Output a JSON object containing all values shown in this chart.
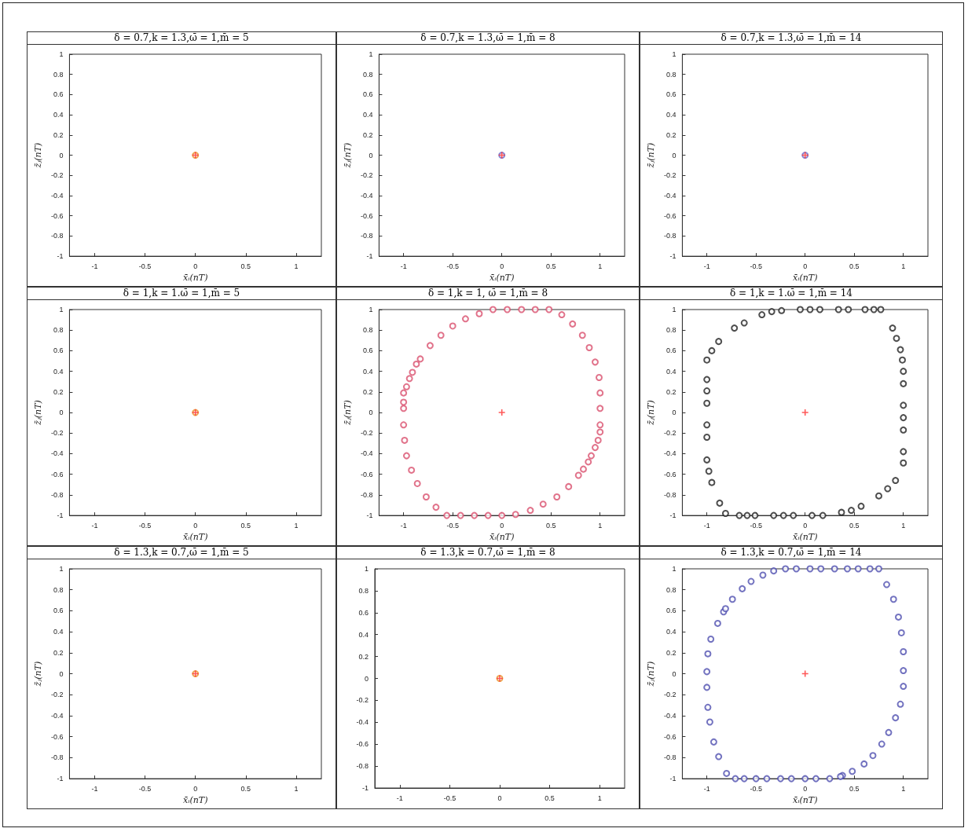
{
  "chart_data": [
    {
      "type": "scatter",
      "title": "δ = 0.7,k = 1.3,ω̄ = 1,m̄ = 5",
      "xlabel": "x̄ᵢ(nT)",
      "ylabel": "z̄ⱼ(nT)",
      "xlim": [
        -1.25,
        1.25
      ],
      "ylim": [
        -1,
        1
      ],
      "xticks": [
        -1,
        -0.5,
        0,
        0.5,
        1
      ],
      "yticks": [
        -1,
        -0.8,
        -0.6,
        -0.4,
        -0.2,
        0,
        0.2,
        0.4,
        0.6,
        0.8,
        1
      ],
      "grid": false,
      "series": [
        {
          "color": "#e8922a",
          "marker": "circle",
          "x": [
            0
          ],
          "values": [
            0
          ]
        },
        {
          "color": "#ff3030",
          "marker": "cross",
          "x": [
            0
          ],
          "values": [
            0
          ]
        }
      ]
    },
    {
      "type": "scatter",
      "title": "δ = 0.7,k = 1.3,ω̄ = 1,m̄ = 8",
      "xlabel": "x̄ᵢ(nT)",
      "ylabel": "z̄ⱼ(nT)",
      "xlim": [
        -1.25,
        1.25
      ],
      "ylim": [
        -1,
        1
      ],
      "xticks": [
        -1,
        -0.5,
        0,
        0.5,
        1
      ],
      "yticks": [
        -1,
        -0.8,
        -0.6,
        -0.4,
        -0.2,
        0,
        0.2,
        0.4,
        0.6,
        0.8,
        1
      ],
      "grid": false,
      "series": [
        {
          "color": "#ff3030",
          "marker": "cross",
          "x": [
            0
          ],
          "values": [
            0
          ]
        },
        {
          "color": "#6a6acb",
          "marker": "circle",
          "x": [
            0
          ],
          "values": [
            0
          ]
        }
      ]
    },
    {
      "type": "scatter",
      "title": "δ = 0.7,k = 1.3,ω̄ = 1,m̄ = 14",
      "xlabel": "x̄ᵢ(nT)",
      "ylabel": "z̄ⱼ(nT)",
      "xlim": [
        -1.25,
        1.25
      ],
      "ylim": [
        -1,
        1
      ],
      "xticks": [
        -1,
        -0.5,
        0,
        0.5,
        1
      ],
      "yticks": [
        -1,
        -0.8,
        -0.6,
        -0.4,
        -0.2,
        0,
        0.2,
        0.4,
        0.6,
        0.8,
        1
      ],
      "grid": false,
      "series": [
        {
          "color": "#ff3030",
          "marker": "cross",
          "x": [
            0
          ],
          "values": [
            0
          ]
        },
        {
          "color": "#6a6acb",
          "marker": "circle",
          "x": [
            0
          ],
          "values": [
            0
          ]
        }
      ]
    },
    {
      "type": "scatter",
      "title": "δ = 1,k = 1.ω̄ = 1,m̄ = 5",
      "xlabel": "x̄ᵢ(nT)",
      "ylabel": "z̄ⱼ(nT)",
      "xlim": [
        -1.25,
        1.25
      ],
      "ylim": [
        -1,
        1
      ],
      "xticks": [
        -1,
        -0.5,
        0,
        0.5,
        1
      ],
      "yticks": [
        -1,
        -0.8,
        -0.6,
        -0.4,
        -0.2,
        0,
        0.2,
        0.4,
        0.6,
        0.8,
        1
      ],
      "grid": false,
      "series": [
        {
          "color": "#e8922a",
          "marker": "circle",
          "x": [
            0
          ],
          "values": [
            0
          ]
        },
        {
          "color": "#ff3030",
          "marker": "cross",
          "x": [
            0
          ],
          "values": [
            0
          ]
        }
      ]
    },
    {
      "type": "scatter",
      "title": "δ = 1,k = 1, ω̄ = 1,m̄ = 8",
      "xlabel": "x̄ᵢ(nT)",
      "ylabel": "z̄ⱼ(nT)",
      "xlim": [
        -1.25,
        1.25
      ],
      "ylim": [
        -1,
        1
      ],
      "xticks": [
        -1,
        -0.5,
        0,
        0.5,
        1
      ],
      "yticks": [
        -1,
        -0.8,
        -0.6,
        -0.4,
        -0.2,
        0,
        0.2,
        0.4,
        0.6,
        0.8,
        1
      ],
      "grid": false,
      "series": [
        {
          "color": "#d9506e",
          "marker": "circle",
          "x": [
            -0.09,
            0.055,
            0.2,
            0.34,
            0.48,
            0.61,
            0.72,
            0.82,
            0.89,
            0.95,
            0.99,
            1,
            1,
            1,
            1,
            0.98,
            0.95,
            0.91,
            0.88,
            0.83,
            0.78,
            0.68,
            0.56,
            0.42,
            0.29,
            0.14,
            0,
            -0.14,
            -0.28,
            -0.42,
            -0.56,
            -0.67,
            -0.77,
            -0.86,
            -0.92,
            -0.97,
            -0.99,
            -1,
            -1,
            -1,
            -1,
            -0.97,
            -0.94,
            -0.91,
            -0.87,
            -0.83,
            -0.73,
            -0.62,
            -0.5,
            -0.37,
            -0.23
          ],
          "values": [
            1,
            1,
            1,
            1,
            1,
            0.95,
            0.86,
            0.75,
            0.63,
            0.49,
            0.34,
            0.19,
            0.04,
            -0.12,
            -0.19,
            -0.27,
            -0.34,
            -0.42,
            -0.48,
            -0.55,
            -0.61,
            -0.72,
            -0.82,
            -0.89,
            -0.95,
            -0.99,
            -1,
            -1,
            -1,
            -1,
            -1,
            -0.92,
            -0.82,
            -0.69,
            -0.56,
            -0.42,
            -0.27,
            -0.12,
            0.04,
            0.1,
            0.19,
            0.25,
            0.33,
            0.39,
            0.47,
            0.52,
            0.65,
            0.75,
            0.84,
            0.91,
            0.96
          ]
        },
        {
          "color": "#ff3030",
          "marker": "cross",
          "x": [
            0
          ],
          "values": [
            0
          ]
        }
      ]
    },
    {
      "type": "scatter",
      "title": "δ = 1,k = 1.ω̄ = 1,m̄ = 14",
      "xlabel": "x̄ᵢ(nT)",
      "ylabel": "z̄ⱼ(nT)",
      "xlim": [
        -1.25,
        1.25
      ],
      "ylim": [
        -1,
        1
      ],
      "xticks": [
        -1,
        -0.5,
        0,
        0.5,
        1
      ],
      "yticks": [
        -1,
        -0.8,
        -0.6,
        -0.4,
        -0.2,
        0,
        0.2,
        0.4,
        0.6,
        0.8,
        1
      ],
      "grid": false,
      "series": [
        {
          "color": "#222222",
          "marker": "circle",
          "x": [
            -0.44,
            -0.34,
            -0.24,
            -0.05,
            0.05,
            0.15,
            0.34,
            0.44,
            0.61,
            0.7,
            0.77,
            0.89,
            0.93,
            0.97,
            0.99,
            1,
            1,
            1,
            1,
            1,
            1,
            1,
            0.92,
            0.84,
            0.75,
            0.57,
            0.47,
            0.37,
            0.18,
            0.07,
            -0.12,
            -0.22,
            -0.32,
            -0.51,
            -0.59,
            -0.67,
            -0.81,
            -0.87,
            -0.95,
            -0.98,
            -1,
            -1,
            -1,
            -1,
            -1,
            -1,
            -1,
            -0.95,
            -0.88,
            -0.72,
            -0.62
          ],
          "values": [
            0.95,
            0.98,
            0.99,
            1,
            1,
            1,
            1,
            1,
            1,
            1,
            1,
            0.82,
            0.72,
            0.61,
            0.51,
            0.4,
            0.28,
            0.07,
            -0.05,
            -0.17,
            -0.38,
            -0.49,
            -0.66,
            -0.74,
            -0.81,
            -0.91,
            -0.95,
            -0.97,
            -1,
            -1,
            -1,
            -1,
            -1,
            -1,
            -1,
            -1,
            -0.98,
            -0.88,
            -0.68,
            -0.57,
            -0.46,
            -0.24,
            -0.12,
            0.09,
            0.21,
            0.32,
            0.51,
            0.6,
            0.69,
            0.82,
            0.87
          ]
        },
        {
          "color": "#ff3030",
          "marker": "cross",
          "x": [
            0
          ],
          "values": [
            0
          ]
        }
      ]
    },
    {
      "type": "scatter",
      "title": "δ = 1.3,k = 0.7,ω̄ = 1,m̄ = 5",
      "xlabel": "x̄ᵢ(nT)",
      "ylabel": "z̄ⱼ(nT)",
      "xlim": [
        -1.25,
        1.25
      ],
      "ylim": [
        -1,
        1
      ],
      "xticks": [
        -1,
        -0.5,
        0,
        0.5,
        1
      ],
      "yticks": [
        -1,
        -0.8,
        -0.6,
        -0.4,
        -0.2,
        0,
        0.2,
        0.4,
        0.6,
        0.8,
        1
      ],
      "grid": false,
      "series": [
        {
          "color": "#e8922a",
          "marker": "circle",
          "x": [
            0
          ],
          "values": [
            0
          ]
        },
        {
          "color": "#ff3030",
          "marker": "cross",
          "x": [
            0
          ],
          "values": [
            0
          ]
        }
      ]
    },
    {
      "type": "scatter",
      "title": "δ = 1.3,k = 0.7,ω̄ = 1,m̄ = 8",
      "xlim": [
        -1.25,
        1.25
      ],
      "ylim": [
        -1,
        1
      ],
      "xticks": [
        -1,
        -0.5,
        0,
        0.5,
        1
      ],
      "yticks": [
        -1,
        -0.8,
        -0.6,
        -0.4,
        -0.2,
        0,
        0.2,
        0.4,
        0.6,
        0.8,
        1
      ],
      "grid": false,
      "series": [
        {
          "color": "#e8922a",
          "marker": "circle",
          "x": [
            0
          ],
          "values": [
            0
          ]
        },
        {
          "color": "#ff3030",
          "marker": "cross",
          "x": [
            0
          ],
          "values": [
            0
          ]
        }
      ]
    },
    {
      "type": "scatter",
      "title": "δ = 1.3,k = 0.7,ω̄ = 1,m̄ = 14",
      "xlabel": "x̄ᵢ(nT)",
      "ylabel": "z̄ⱼ(nT)",
      "xlim": [
        -1.25,
        1.25
      ],
      "ylim": [
        -1,
        1
      ],
      "xticks": [
        -1,
        -0.5,
        0,
        0.5,
        1
      ],
      "yticks": [
        -1,
        -0.8,
        -0.6,
        -0.4,
        -0.2,
        0,
        0.2,
        0.4,
        0.6,
        0.8,
        1
      ],
      "grid": false,
      "series": [
        {
          "color": "#5050b0",
          "marker": "circle",
          "x": [
            -0.43,
            -0.32,
            -0.2,
            -0.09,
            0.05,
            0.16,
            0.3,
            0.43,
            0.54,
            0.66,
            0.75,
            0.83,
            0.9,
            0.95,
            0.98,
            1,
            1,
            1,
            0.97,
            0.92,
            0.85,
            0.78,
            0.69,
            0.6,
            0.48,
            0.38,
            0.36,
            0.25,
            0.11,
            0,
            -0.14,
            -0.25,
            -0.39,
            -0.5,
            -0.62,
            -0.71,
            -0.8,
            -0.88,
            -0.93,
            -0.97,
            -0.99,
            -1,
            -1,
            -0.99,
            -0.96,
            -0.89,
            -0.83,
            -0.81,
            -0.74,
            -0.64,
            -0.55
          ],
          "values": [
            0.94,
            0.98,
            1,
            1,
            1,
            1,
            1,
            1,
            1,
            1,
            1,
            0.85,
            0.71,
            0.54,
            0.39,
            0.21,
            0.03,
            -0.12,
            -0.29,
            -0.42,
            -0.56,
            -0.67,
            -0.78,
            -0.86,
            -0.93,
            -0.97,
            -0.98,
            -1,
            -1,
            -1,
            -1,
            -1,
            -1,
            -1,
            -1,
            -1,
            -0.95,
            -0.79,
            -0.65,
            -0.46,
            -0.32,
            -0.13,
            0.02,
            0.19,
            0.33,
            0.48,
            0.59,
            0.62,
            0.71,
            0.81,
            0.88
          ]
        },
        {
          "color": "#ff3030",
          "marker": "cross",
          "x": [
            0
          ],
          "values": [
            0
          ]
        }
      ]
    }
  ]
}
